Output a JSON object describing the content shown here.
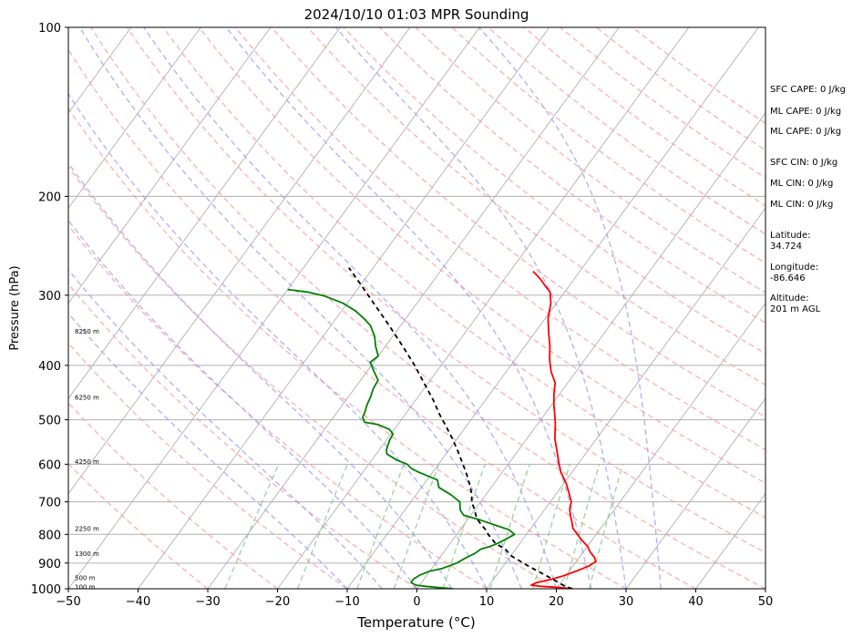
{
  "chart_data": {
    "type": "line",
    "title": "2024/10/10 01:03 MPR Sounding",
    "xlabel": "Temperature (°C)",
    "ylabel": "Pressure (hPa)",
    "xlim": [
      -50,
      50
    ],
    "ylim": [
      1000,
      100
    ],
    "y_scale": "log",
    "grid": true,
    "skew_t": true,
    "x_ticks": [
      "−50",
      "−40",
      "−30",
      "−20",
      "−10",
      "0",
      "10",
      "20",
      "30",
      "40",
      "50"
    ],
    "y_ticks": [
      "100",
      "200",
      "300",
      "400",
      "500",
      "600",
      "700",
      "800",
      "900",
      "1000"
    ],
    "height_labels": [
      {
        "text": "100 m",
        "p": 990
      },
      {
        "text": "500 m",
        "p": 955
      },
      {
        "text": "1300 m",
        "p": 865
      },
      {
        "text": "2250 m",
        "p": 780
      },
      {
        "text": "4250 m",
        "p": 593
      },
      {
        "text": "6250 m",
        "p": 455
      },
      {
        "text": "8250 m",
        "p": 347
      }
    ],
    "series": [
      {
        "color": "#ff0000",
        "points": [
          [
            1000,
            22.3
          ],
          [
            995,
            20.5
          ],
          [
            990,
            17.5
          ],
          [
            985,
            16.0
          ],
          [
            975,
            16.5
          ],
          [
            962,
            18.3
          ],
          [
            950,
            19.5
          ],
          [
            930,
            21.0
          ],
          [
            910,
            22.3
          ],
          [
            895,
            22.8
          ],
          [
            880,
            22.2
          ],
          [
            860,
            21.0
          ],
          [
            840,
            20.0
          ],
          [
            820,
            18.6
          ],
          [
            800,
            17.3
          ],
          [
            780,
            16.0
          ],
          [
            760,
            15.2
          ],
          [
            740,
            14.3
          ],
          [
            720,
            13.5
          ],
          [
            700,
            13.0
          ],
          [
            680,
            12.0
          ],
          [
            650,
            10.4
          ],
          [
            620,
            8.4
          ],
          [
            600,
            7.3
          ],
          [
            570,
            5.7
          ],
          [
            540,
            4.0
          ],
          [
            510,
            2.6
          ],
          [
            490,
            1.5
          ],
          [
            470,
            0.3
          ],
          [
            450,
            -0.8
          ],
          [
            430,
            -1.8
          ],
          [
            410,
            -3.6
          ],
          [
            390,
            -5.1
          ],
          [
            370,
            -6.4
          ],
          [
            350,
            -8.0
          ],
          [
            330,
            -9.6
          ],
          [
            310,
            -10.8
          ],
          [
            296,
            -12.1
          ],
          [
            290,
            -13.2
          ],
          [
            280,
            -15.0
          ],
          [
            272,
            -16.7
          ]
        ]
      },
      {
        "color": "#008000",
        "points": [
          [
            1000,
            5.2
          ],
          [
            995,
            3.0
          ],
          [
            990,
            1.0
          ],
          [
            985,
            -0.5
          ],
          [
            975,
            -1.5
          ],
          [
            960,
            -1.5
          ],
          [
            945,
            -1.0
          ],
          [
            930,
            0.0
          ],
          [
            920,
            1.5
          ],
          [
            900,
            3.0
          ],
          [
            880,
            3.8
          ],
          [
            865,
            4.6
          ],
          [
            850,
            5.0
          ],
          [
            840,
            6.1
          ],
          [
            830,
            6.8
          ],
          [
            815,
            7.6
          ],
          [
            800,
            8.3
          ],
          [
            785,
            7.0
          ],
          [
            770,
            4.5
          ],
          [
            755,
            2.0
          ],
          [
            740,
            -1.0
          ],
          [
            725,
            -2.0
          ],
          [
            700,
            -3.0
          ],
          [
            680,
            -5.0
          ],
          [
            660,
            -7.5
          ],
          [
            640,
            -8.5
          ],
          [
            620,
            -12.0
          ],
          [
            610,
            -13.5
          ],
          [
            600,
            -14.5
          ],
          [
            590,
            -16.4
          ],
          [
            575,
            -18.5
          ],
          [
            565,
            -19.0
          ],
          [
            545,
            -19.5
          ],
          [
            530,
            -19.7
          ],
          [
            520,
            -20.7
          ],
          [
            510,
            -22.8
          ],
          [
            505,
            -25.0
          ],
          [
            495,
            -25.8
          ],
          [
            485,
            -26.0
          ],
          [
            470,
            -26.5
          ],
          [
            455,
            -26.8
          ],
          [
            440,
            -27.3
          ],
          [
            425,
            -27.5
          ],
          [
            410,
            -29.0
          ],
          [
            395,
            -30.5
          ],
          [
            385,
            -30.0
          ],
          [
            370,
            -31.4
          ],
          [
            355,
            -32.6
          ],
          [
            340,
            -34.3
          ],
          [
            330,
            -36.0
          ],
          [
            320,
            -38.0
          ],
          [
            310,
            -40.6
          ],
          [
            301,
            -44.0
          ],
          [
            296,
            -47.0
          ],
          [
            293,
            -50.0
          ]
        ]
      },
      {
        "color": "#000000",
        "points": [
          [
            1000,
            22.3
          ],
          [
            990,
            21.0
          ],
          [
            950,
            17.4
          ],
          [
            910,
            13.5
          ],
          [
            875,
            10.2
          ],
          [
            850,
            8.5
          ],
          [
            830,
            6.5
          ],
          [
            800,
            4.5
          ],
          [
            790,
            4.0
          ],
          [
            770,
            2.6
          ],
          [
            750,
            1.2
          ],
          [
            720,
            -0.2
          ],
          [
            700,
            -1.3
          ],
          [
            680,
            -2.0
          ],
          [
            650,
            -3.5
          ],
          [
            620,
            -5.2
          ],
          [
            600,
            -6.5
          ],
          [
            570,
            -8.5
          ],
          [
            540,
            -10.7
          ],
          [
            510,
            -13.2
          ],
          [
            490,
            -15.0
          ],
          [
            460,
            -17.6
          ],
          [
            430,
            -20.6
          ],
          [
            400,
            -23.8
          ],
          [
            370,
            -27.5
          ],
          [
            340,
            -31.6
          ],
          [
            310,
            -36.2
          ],
          [
            285,
            -40.4
          ],
          [
            268,
            -43.5
          ]
        ]
      }
    ],
    "annotations": [
      {
        "text": "SFC CAPE: 0 J/kg"
      },
      {
        "text": "ML CAPE: 0 J/kg"
      },
      {
        "text": "ML CAPE: 0 J/kg"
      },
      {
        "text": "SFC CIN: 0 J/kg"
      },
      {
        "text": "ML CIN: 0 J/kg"
      },
      {
        "text": "ML CIN: 0 J/kg"
      },
      {
        "text": "Latitude:\n34.724"
      },
      {
        "text": "Longitude:\n-86.646"
      },
      {
        "text": "Altitude:\n201 m AGL"
      }
    ],
    "reference_lines": {
      "isotherm_color": "#b0b0b0",
      "dry_adiabat_color": "#ff9999",
      "moist_adiabat_color": "#9999ff",
      "mixing_ratio_color": "#88cc88"
    }
  }
}
